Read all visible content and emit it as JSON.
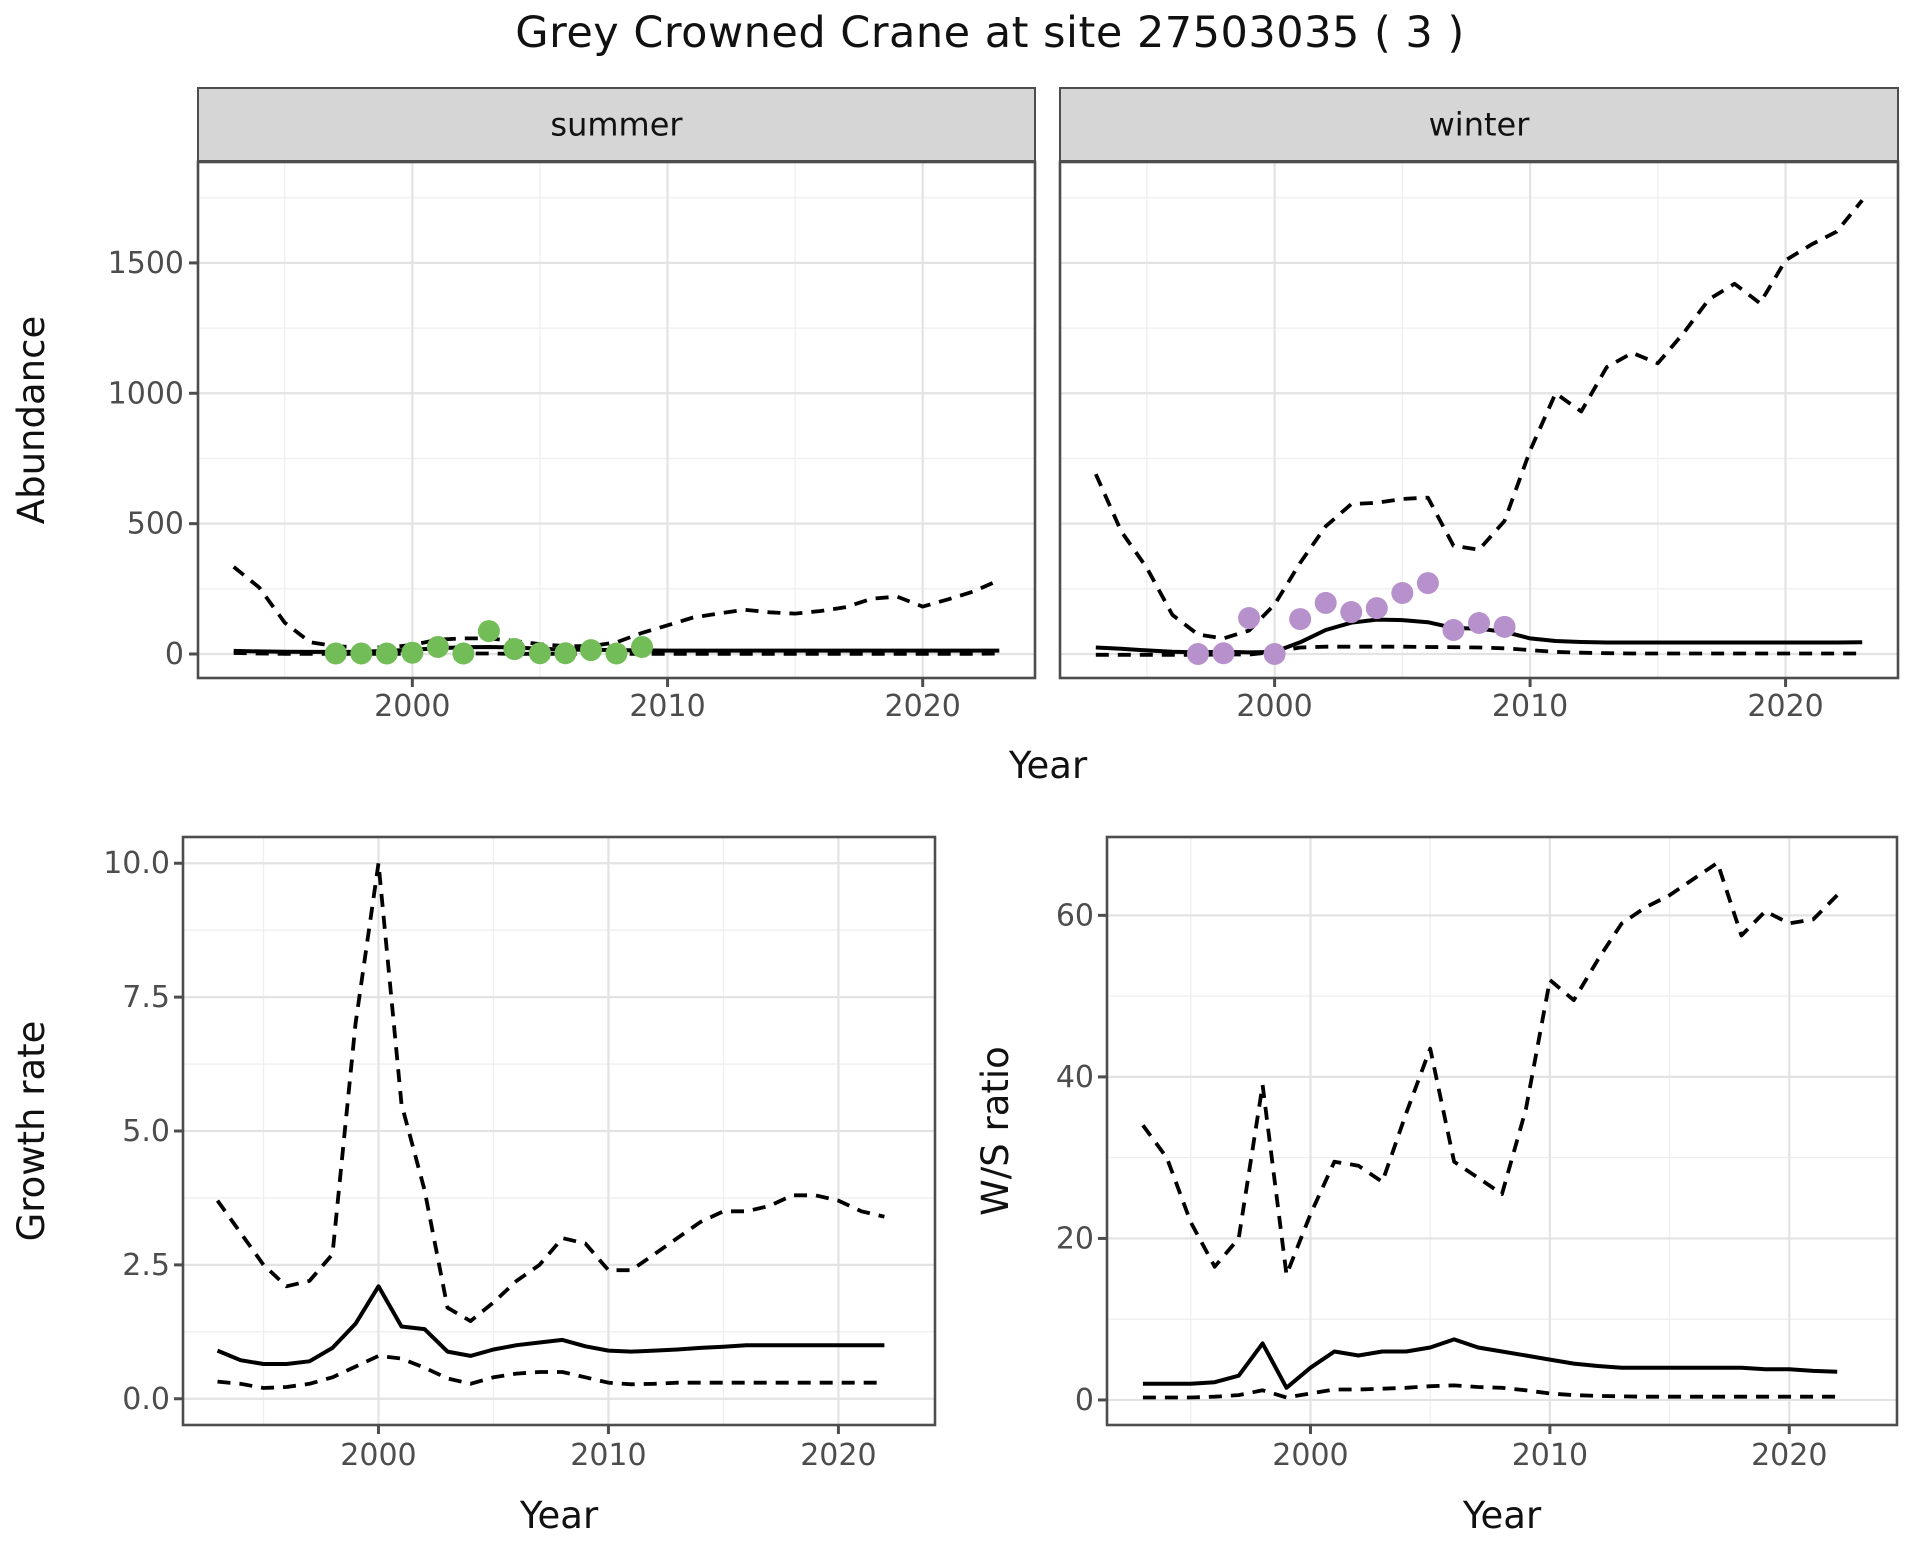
{
  "title": "Grey Crowned Crane at site 27503035 ( 3 )",
  "colors": {
    "summer_points": "#72bd58",
    "winter_points": "#b791cc",
    "line": "#000000",
    "strip_bg": "#d6d6d6",
    "panel_border": "#4d4d4d",
    "grid_major": "#e3e3e3",
    "grid_minor": "#efefef",
    "tick_label": "#4d4d4d",
    "title_text": "#111111"
  },
  "facets": [
    {
      "label": "summer"
    },
    {
      "label": "winter"
    }
  ],
  "chart_data": [
    {
      "id": "abundance-summer",
      "type": "line",
      "facet": "summer",
      "xlabel": "Year",
      "ylabel": "Abundance",
      "xlim": [
        1991.6,
        2024.4
      ],
      "ylim": [
        -92,
        1887
      ],
      "x_ticks": [
        2000,
        2010,
        2020
      ],
      "x_tick_labels": [
        "2000",
        "2010",
        "2020"
      ],
      "x_minor": [
        1995,
        2005,
        2015
      ],
      "y_ticks": [
        0,
        500,
        1000,
        1500
      ],
      "y_tick_labels": [
        "0",
        "500",
        "1000",
        "1500"
      ],
      "y_minor": [
        250,
        750,
        1250,
        1750
      ],
      "grid": true,
      "years": [
        1993,
        1994,
        1995,
        1996,
        1997,
        1998,
        1999,
        2000,
        2001,
        2002,
        2003,
        2004,
        2005,
        2006,
        2007,
        2008,
        2009,
        2010,
        2011,
        2012,
        2013,
        2014,
        2015,
        2016,
        2017,
        2018,
        2019,
        2020,
        2021,
        2022,
        2023
      ],
      "series": [
        {
          "name": "fitted-median",
          "linetype": "solid",
          "values": [
            12,
            10,
            9,
            8,
            8,
            9,
            12,
            16,
            22,
            26,
            27,
            25,
            20,
            17,
            16,
            15,
            14,
            13,
            13,
            13,
            13,
            13,
            13,
            13,
            13,
            13,
            13,
            13,
            13,
            13,
            13
          ]
        },
        {
          "name": "upper-interval",
          "linetype": "dashed",
          "values": [
            334,
            255,
            120,
            45,
            30,
            25,
            25,
            35,
            55,
            60,
            60,
            50,
            38,
            30,
            30,
            45,
            81,
            110,
            140,
            155,
            170,
            160,
            155,
            165,
            180,
            212,
            220,
            182,
            210,
            240,
            284
          ]
        },
        {
          "name": "lower-interval",
          "linetype": "dashed",
          "values": [
            4,
            2,
            1,
            1,
            1,
            1,
            1,
            1,
            2,
            2,
            2,
            1,
            1,
            1,
            1,
            1,
            1,
            1,
            1,
            1,
            1,
            1,
            1,
            1,
            1,
            1,
            1,
            1,
            1,
            1,
            2
          ]
        }
      ],
      "points": {
        "name": "observed-summer-counts",
        "color": "#72bd58",
        "years": [
          1997,
          1998,
          1999,
          2000,
          2001,
          2002,
          2003,
          2004,
          2005,
          2006,
          2007,
          2008,
          2009
        ],
        "values": [
          2,
          2,
          2,
          5,
          27,
          2,
          88,
          19,
          3,
          3,
          15,
          2,
          27
        ]
      }
    },
    {
      "id": "abundance-winter",
      "type": "line",
      "facet": "winter",
      "xlabel": "Year",
      "ylabel": "Abundance",
      "xlim": [
        1991.6,
        2024.4
      ],
      "ylim": [
        -92,
        1887
      ],
      "x_ticks": [
        2000,
        2010,
        2020
      ],
      "x_tick_labels": [
        "2000",
        "2010",
        "2020"
      ],
      "x_minor": [
        1995,
        2005,
        2015
      ],
      "y_ticks": [
        0,
        500,
        1000,
        1500
      ],
      "y_tick_labels": [
        "0",
        "500",
        "1000",
        "1500"
      ],
      "y_minor": [
        250,
        750,
        1250,
        1750
      ],
      "grid": true,
      "years": [
        1993,
        1994,
        1995,
        1996,
        1997,
        1998,
        1999,
        2000,
        2001,
        2002,
        2003,
        2004,
        2005,
        2006,
        2007,
        2008,
        2009,
        2010,
        2011,
        2012,
        2013,
        2014,
        2015,
        2016,
        2017,
        2018,
        2019,
        2020,
        2021,
        2022,
        2023
      ],
      "series": [
        {
          "name": "fitted-median",
          "linetype": "solid",
          "values": [
            25,
            20,
            14,
            9,
            6,
            9,
            6,
            8,
            45,
            92,
            120,
            132,
            130,
            122,
            100,
            97,
            85,
            60,
            50,
            46,
            44,
            44,
            44,
            44,
            44,
            44,
            44,
            44,
            44,
            44,
            45
          ]
        },
        {
          "name": "upper-interval",
          "linetype": "dashed",
          "values": [
            690,
            470,
            330,
            150,
            75,
            60,
            90,
            190,
            350,
            490,
            575,
            580,
            595,
            600,
            415,
            400,
            510,
            780,
            1000,
            930,
            1100,
            1155,
            1115,
            1230,
            1360,
            1420,
            1345,
            1510,
            1570,
            1620,
            1740
          ]
        },
        {
          "name": "lower-interval",
          "linetype": "dashed",
          "values": [
            -3,
            -3,
            -3,
            -3,
            -3,
            -2,
            -2,
            8,
            25,
            28,
            28,
            28,
            28,
            27,
            26,
            25,
            22,
            15,
            8,
            5,
            3,
            2,
            2,
            2,
            2,
            2,
            2,
            2,
            2,
            2,
            2
          ]
        }
      ],
      "points": {
        "name": "observed-winter-counts",
        "color": "#b791cc",
        "years": [
          1997,
          1998,
          1999,
          2000,
          2001,
          2002,
          2003,
          2004,
          2005,
          2006,
          2007,
          2008,
          2009
        ],
        "values": [
          0,
          3,
          138,
          0,
          134,
          196,
          161,
          176,
          234,
          272,
          92,
          119,
          104
        ]
      }
    },
    {
      "id": "growth-rate",
      "type": "line",
      "facet": null,
      "xlabel": "Year",
      "ylabel": "Growth rate",
      "xlim": [
        1991.5,
        2024.2
      ],
      "ylim": [
        -0.49,
        10.49
      ],
      "x_ticks": [
        2000,
        2010,
        2020
      ],
      "x_tick_labels": [
        "2000",
        "2010",
        "2020"
      ],
      "x_minor": [
        1995,
        2005,
        2015
      ],
      "y_ticks": [
        0.0,
        2.5,
        5.0,
        7.5,
        10.0
      ],
      "y_tick_labels": [
        "0.0",
        "2.5",
        "5.0",
        "7.5",
        "10.0"
      ],
      "y_minor": [
        1.25,
        3.75,
        6.25,
        8.75
      ],
      "grid": true,
      "years": [
        1993,
        1994,
        1995,
        1996,
        1997,
        1998,
        1999,
        2000,
        2001,
        2002,
        2003,
        2004,
        2005,
        2006,
        2007,
        2008,
        2009,
        2010,
        2011,
        2012,
        2013,
        2014,
        2015,
        2016,
        2017,
        2018,
        2019,
        2020,
        2021,
        2022
      ],
      "series": [
        {
          "name": "fitted-median",
          "linetype": "solid",
          "values": [
            0.9,
            0.72,
            0.65,
            0.65,
            0.7,
            0.95,
            1.4,
            2.1,
            1.35,
            1.3,
            0.88,
            0.8,
            0.92,
            1.0,
            1.05,
            1.1,
            0.98,
            0.9,
            0.88,
            0.9,
            0.92,
            0.95,
            0.97,
            1.0,
            1.0,
            1.0,
            1.0,
            1.0,
            1.0,
            1.0
          ]
        },
        {
          "name": "upper-interval",
          "linetype": "dashed",
          "values": [
            3.7,
            3.1,
            2.5,
            2.1,
            2.2,
            2.7,
            7.0,
            10.0,
            5.5,
            3.9,
            1.7,
            1.45,
            1.8,
            2.2,
            2.5,
            3.0,
            2.9,
            2.4,
            2.4,
            2.7,
            3.0,
            3.3,
            3.5,
            3.5,
            3.6,
            3.8,
            3.8,
            3.7,
            3.5,
            3.4
          ]
        },
        {
          "name": "lower-interval",
          "linetype": "dashed",
          "values": [
            0.32,
            0.28,
            0.2,
            0.22,
            0.28,
            0.4,
            0.6,
            0.8,
            0.75,
            0.58,
            0.38,
            0.28,
            0.4,
            0.47,
            0.5,
            0.5,
            0.4,
            0.3,
            0.27,
            0.28,
            0.3,
            0.3,
            0.3,
            0.3,
            0.3,
            0.3,
            0.3,
            0.3,
            0.3,
            0.3
          ]
        }
      ],
      "points": null
    },
    {
      "id": "ws-ratio",
      "type": "line",
      "facet": null,
      "xlabel": "Year",
      "ylabel": "W/S ratio",
      "xlim": [
        1991.5,
        2024.5
      ],
      "ylim": [
        -3.1,
        69.7
      ],
      "x_ticks": [
        2000,
        2010,
        2020
      ],
      "x_tick_labels": [
        "2000",
        "2010",
        "2020"
      ],
      "x_minor": [
        1995,
        2005,
        2015
      ],
      "y_ticks": [
        0,
        20,
        40,
        60
      ],
      "y_tick_labels": [
        "0",
        "20",
        "40",
        "60"
      ],
      "y_minor": [
        10,
        30,
        50
      ],
      "grid": true,
      "years": [
        1993,
        1994,
        1995,
        1996,
        1997,
        1998,
        1999,
        2000,
        2001,
        2002,
        2003,
        2004,
        2005,
        2006,
        2007,
        2008,
        2009,
        2010,
        2011,
        2012,
        2013,
        2014,
        2015,
        2016,
        2017,
        2018,
        2019,
        2020,
        2021,
        2022
      ],
      "series": [
        {
          "name": "fitted-median",
          "linetype": "solid",
          "values": [
            2,
            2,
            2,
            2.2,
            3,
            7,
            1.5,
            4,
            6,
            5.5,
            6,
            6,
            6.5,
            7.5,
            6.5,
            6,
            5.5,
            5,
            4.5,
            4.2,
            4,
            4,
            4,
            4,
            4,
            4,
            3.8,
            3.8,
            3.6,
            3.5
          ]
        },
        {
          "name": "upper-interval",
          "linetype": "dashed",
          "values": [
            34,
            30,
            22,
            16.5,
            20,
            39,
            15.5,
            23,
            29.5,
            29,
            27,
            35.5,
            43.5,
            29.5,
            27.5,
            25.5,
            36,
            52,
            49.5,
            54.5,
            59,
            61,
            62.5,
            64.5,
            66.5,
            57.5,
            60.5,
            59,
            59.5,
            62.5
          ]
        },
        {
          "name": "lower-interval",
          "linetype": "dashed",
          "values": [
            0.3,
            0.3,
            0.3,
            0.4,
            0.6,
            1.2,
            0.3,
            0.8,
            1.3,
            1.3,
            1.4,
            1.5,
            1.7,
            1.8,
            1.6,
            1.5,
            1.2,
            0.8,
            0.6,
            0.5,
            0.45,
            0.4,
            0.4,
            0.4,
            0.4,
            0.4,
            0.4,
            0.4,
            0.4,
            0.4
          ]
        }
      ],
      "points": null
    }
  ]
}
